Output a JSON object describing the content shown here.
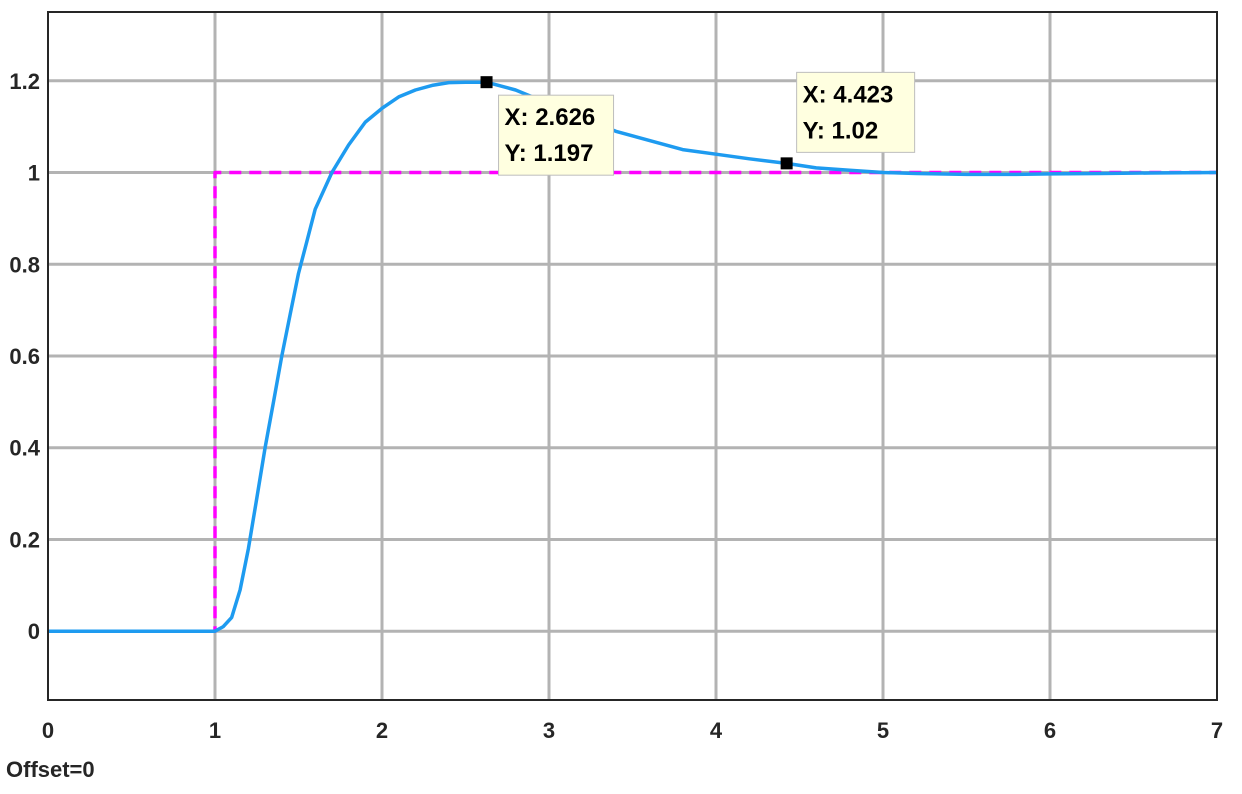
{
  "chart_data": {
    "type": "line",
    "title": "",
    "xlabel": "",
    "ylabel": "",
    "xlim": [
      0,
      7
    ],
    "ylim": [
      -0.15,
      1.35
    ],
    "x_ticks": [
      0,
      1,
      2,
      3,
      4,
      5,
      6,
      7
    ],
    "x_tick_labels": [
      "0",
      "1",
      "2",
      "3",
      "4",
      "5",
      "6",
      "7"
    ],
    "y_ticks": [
      0,
      0.2,
      0.4,
      0.6,
      0.8,
      1,
      1.2
    ],
    "y_tick_labels": [
      "0",
      "0.2",
      "0.4",
      "0.6",
      "0.8",
      "1",
      "1.2"
    ],
    "grid": true,
    "series": [
      {
        "style": "dashed",
        "color": "#FF00FF",
        "x": [
          0,
          1,
          1,
          7
        ],
        "y": [
          0,
          0,
          1,
          1
        ]
      },
      {
        "style": "solid",
        "color": "#1E9BF0",
        "x": [
          0,
          1,
          1.05,
          1.1,
          1.15,
          1.2,
          1.25,
          1.3,
          1.35,
          1.4,
          1.45,
          1.5,
          1.55,
          1.6,
          1.7,
          1.8,
          1.9,
          2.0,
          2.1,
          2.2,
          2.3,
          2.4,
          2.5,
          2.626,
          2.8,
          3.0,
          3.2,
          3.4,
          3.6,
          3.8,
          4.0,
          4.2,
          4.423,
          4.6,
          4.8,
          5.0,
          5.2,
          5.5,
          5.8,
          6.0,
          6.3,
          6.6,
          7.0
        ],
        "y": [
          0,
          0,
          0.01,
          0.03,
          0.09,
          0.18,
          0.29,
          0.4,
          0.5,
          0.6,
          0.69,
          0.78,
          0.85,
          0.92,
          1.0,
          1.06,
          1.11,
          1.14,
          1.165,
          1.18,
          1.19,
          1.196,
          1.197,
          1.197,
          1.18,
          1.15,
          1.12,
          1.09,
          1.07,
          1.05,
          1.04,
          1.03,
          1.02,
          1.01,
          1.005,
          1.0,
          0.998,
          0.996,
          0.996,
          0.997,
          0.998,
          0.999,
          1.0
        ]
      }
    ],
    "datatips": [
      {
        "x": 2.626,
        "y": 1.197,
        "x_text": "X: 2.626",
        "y_text": "Y: 1.197"
      },
      {
        "x": 4.423,
        "y": 1.02,
        "x_text": "X: 4.423",
        "y_text": "Y: 1.02"
      }
    ]
  },
  "footer": {
    "offset_text": "Offset=0"
  }
}
